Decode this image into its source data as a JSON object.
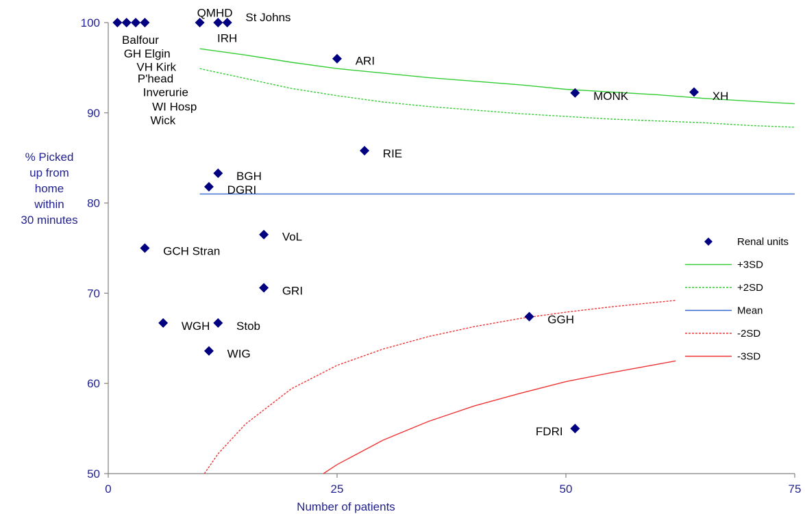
{
  "chart_data": {
    "type": "scatter",
    "title": "",
    "xlabel": "Number of patients",
    "ylabel_lines": [
      "% Picked",
      "up from",
      "home",
      "within",
      "30 minutes"
    ],
    "xlim": [
      0,
      75
    ],
    "ylim": [
      50,
      100
    ],
    "x_ticks": [
      0,
      25,
      50,
      75
    ],
    "y_ticks": [
      50,
      60,
      70,
      80,
      90,
      100
    ],
    "legend_position": "right",
    "mean": 81,
    "colors": {
      "points": "#000080",
      "plus3sd": "#33cc33",
      "plus2sd": "#33cc33",
      "mean": "#3366cc",
      "minus2sd": "#ee3333",
      "minus3sd": "#ee3333",
      "axis": "#7f7f7f",
      "axis_text": "#1f1f8f"
    },
    "points": [
      {
        "x": 1,
        "y": 100
      },
      {
        "x": 2,
        "y": 100
      },
      {
        "x": 3,
        "y": 100
      },
      {
        "x": 4,
        "y": 100
      },
      {
        "x": 10,
        "y": 100
      },
      {
        "x": 12,
        "y": 100
      },
      {
        "x": 13,
        "y": 100
      },
      {
        "x": 25,
        "y": 96
      },
      {
        "x": 51,
        "y": 92.2
      },
      {
        "x": 64,
        "y": 92.3
      },
      {
        "x": 28,
        "y": 85.8
      },
      {
        "x": 12,
        "y": 83.3
      },
      {
        "x": 11,
        "y": 81.8
      },
      {
        "x": 17,
        "y": 76.5
      },
      {
        "x": 4,
        "y": 75
      },
      {
        "x": 17,
        "y": 70.6
      },
      {
        "x": 6,
        "y": 66.7
      },
      {
        "x": 12,
        "y": 66.7
      },
      {
        "x": 11,
        "y": 63.6
      },
      {
        "x": 46,
        "y": 67.4
      },
      {
        "x": 51,
        "y": 55
      }
    ],
    "labels": [
      {
        "text": "QMHD",
        "x": 9.7,
        "y": 101.1
      },
      {
        "text": "St Johns",
        "x": 15,
        "y": 100.6
      },
      {
        "text": "IRH",
        "x": 11.9,
        "y": 98.3
      },
      {
        "text": "Balfour",
        "x": 1.5,
        "y": 98.1
      },
      {
        "text": "GH  Elgin",
        "x": 1.7,
        "y": 96.6
      },
      {
        "text": "VH  Kirk",
        "x": 3.1,
        "y": 95.1
      },
      {
        "text": "P'head",
        "x": 3.2,
        "y": 93.8
      },
      {
        "text": "Inverurie",
        "x": 3.8,
        "y": 92.3
      },
      {
        "text": "WI Hosp",
        "x": 4.8,
        "y": 90.7
      },
      {
        "text": "Wick",
        "x": 4.6,
        "y": 89.2
      },
      {
        "text": "ARI",
        "x": 27,
        "y": 95.8
      },
      {
        "text": "MONK",
        "x": 53,
        "y": 91.9
      },
      {
        "text": "XH",
        "x": 66,
        "y": 91.9
      },
      {
        "text": "RIE",
        "x": 30,
        "y": 85.5
      },
      {
        "text": "BGH",
        "x": 14,
        "y": 83
      },
      {
        "text": "DGRI",
        "x": 13,
        "y": 81.5
      },
      {
        "text": "VoL",
        "x": 19,
        "y": 76.3
      },
      {
        "text": "GCH  Stran",
        "x": 6,
        "y": 74.7
      },
      {
        "text": "GRI",
        "x": 19,
        "y": 70.3
      },
      {
        "text": "WGH",
        "x": 8,
        "y": 66.4
      },
      {
        "text": "Stob",
        "x": 14,
        "y": 66.4
      },
      {
        "text": "WIG",
        "x": 13,
        "y": 63.3
      },
      {
        "text": "GGH",
        "x": 48,
        "y": 67.1
      },
      {
        "text": "FDRI",
        "x": 46.7,
        "y": 54.7
      }
    ],
    "series": [
      {
        "key": "plus3sd",
        "x": [
          10,
          15,
          20,
          25,
          30,
          35,
          40,
          45,
          50,
          55,
          60,
          65,
          70,
          75
        ],
        "values": [
          97.1,
          96.4,
          95.6,
          94.9,
          94.4,
          93.9,
          93.5,
          93.1,
          92.6,
          92.3,
          92,
          91.6,
          91.3,
          91
        ]
      },
      {
        "key": "plus2sd",
        "x": [
          10,
          15,
          20,
          25,
          30,
          35,
          40,
          45,
          50,
          55,
          60,
          65,
          70,
          75
        ],
        "values": [
          94.9,
          93.8,
          92.7,
          91.9,
          91.2,
          90.7,
          90.3,
          89.9,
          89.6,
          89.3,
          89.1,
          88.9,
          88.6,
          88.4
        ]
      },
      {
        "key": "mean",
        "x": [
          10,
          75
        ],
        "values": [
          81,
          81
        ]
      },
      {
        "key": "minus2sd",
        "x": [
          10.5,
          12,
          15,
          20,
          25,
          30,
          35,
          40,
          45,
          50,
          55,
          62
        ],
        "values": [
          50,
          52.2,
          55.5,
          59.4,
          62,
          63.8,
          65.2,
          66.3,
          67.2,
          67.9,
          68.5,
          69.2
        ]
      },
      {
        "key": "minus3sd",
        "x": [
          23.5,
          25,
          30,
          35,
          40,
          45,
          50,
          55,
          62
        ],
        "values": [
          50,
          51,
          53.7,
          55.8,
          57.5,
          58.9,
          60.2,
          61.2,
          62.5
        ]
      }
    ],
    "legend": [
      {
        "key": "renal",
        "label": "Renal units",
        "kind": "marker"
      },
      {
        "key": "plus3sd",
        "label": "+3SD",
        "kind": "solid"
      },
      {
        "key": "plus2sd",
        "label": "+2SD",
        "kind": "dashed"
      },
      {
        "key": "mean",
        "label": "Mean",
        "kind": "solid"
      },
      {
        "key": "minus2sd",
        "label": "-2SD",
        "kind": "dashed"
      },
      {
        "key": "minus3sd",
        "label": "-3SD",
        "kind": "solid"
      }
    ]
  }
}
